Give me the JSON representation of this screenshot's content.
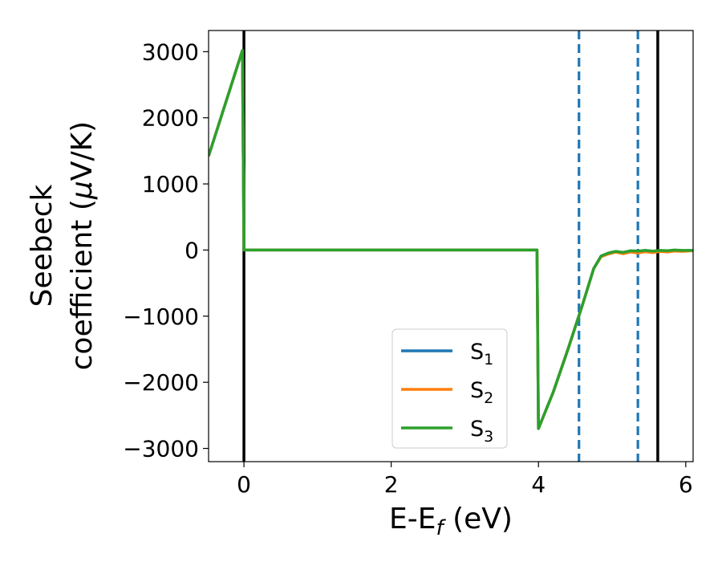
{
  "chart_data": {
    "type": "line",
    "xlabel": "E-E",
    "xlabel_sub": "f",
    "xlabel_unit": " (eV)",
    "ylabel_line1": "Seebeck",
    "ylabel_line2": "coefficient  (",
    "ylabel_mu": "μ",
    "ylabel_unit": "V/K)",
    "xlim": [
      -0.48,
      6.1
    ],
    "ylim": [
      -3200,
      3320
    ],
    "x_ticks": [
      0,
      2,
      4,
      6
    ],
    "x_tick_labels": [
      "0",
      "2",
      "4",
      "6"
    ],
    "y_ticks": [
      3000,
      2000,
      1000,
      0,
      -1000,
      -2000,
      -3000
    ],
    "y_tick_labels": [
      "3000",
      "2000",
      "1000",
      "0",
      "−1000",
      "−2000",
      "−3000"
    ],
    "grid": false,
    "legend_position": "lower-center",
    "vlines": [
      {
        "x": 0,
        "style": "solid",
        "color": "#000000"
      },
      {
        "x": 4.55,
        "style": "dashed",
        "color": "#1f77b4"
      },
      {
        "x": 5.35,
        "style": "dashed",
        "color": "#1f77b4"
      },
      {
        "x": 5.62,
        "style": "solid",
        "color": "#000000"
      }
    ],
    "series": [
      {
        "name": "S",
        "sub": "1",
        "color": "#1f77b4",
        "points": [
          [
            -0.48,
            1420
          ],
          [
            -0.02,
            3020
          ],
          [
            0.0,
            0
          ],
          [
            1.0,
            0
          ],
          [
            2.0,
            0
          ],
          [
            3.0,
            0
          ],
          [
            3.98,
            0
          ],
          [
            4.0,
            -2700
          ],
          [
            4.2,
            -2150
          ],
          [
            4.4,
            -1500
          ],
          [
            4.6,
            -820
          ],
          [
            4.75,
            -280
          ],
          [
            4.85,
            -90
          ],
          [
            4.95,
            -50
          ],
          [
            5.05,
            -25
          ],
          [
            5.15,
            -40
          ],
          [
            5.25,
            -15
          ],
          [
            5.35,
            -20
          ],
          [
            5.45,
            -5
          ],
          [
            5.55,
            -20
          ],
          [
            5.65,
            -10
          ],
          [
            5.75,
            -15
          ],
          [
            5.85,
            -5
          ],
          [
            5.95,
            -10
          ],
          [
            6.1,
            -5
          ]
        ]
      },
      {
        "name": "S",
        "sub": "2",
        "color": "#ff7f0e",
        "points": [
          [
            -0.48,
            1420
          ],
          [
            -0.02,
            3020
          ],
          [
            0.0,
            0
          ],
          [
            1.0,
            0
          ],
          [
            2.0,
            0
          ],
          [
            3.0,
            0
          ],
          [
            3.98,
            0
          ],
          [
            4.0,
            -2700
          ],
          [
            4.2,
            -2150
          ],
          [
            4.4,
            -1500
          ],
          [
            4.6,
            -820
          ],
          [
            4.75,
            -280
          ],
          [
            4.85,
            -100
          ],
          [
            4.95,
            -60
          ],
          [
            5.05,
            -30
          ],
          [
            5.15,
            -55
          ],
          [
            5.25,
            -30
          ],
          [
            5.35,
            -45
          ],
          [
            5.45,
            -25
          ],
          [
            5.55,
            -40
          ],
          [
            5.65,
            -20
          ],
          [
            5.75,
            -30
          ],
          [
            5.85,
            -15
          ],
          [
            5.95,
            -20
          ],
          [
            6.1,
            -10
          ]
        ]
      },
      {
        "name": "S",
        "sub": "3",
        "color": "#2ca02c",
        "points": [
          [
            -0.48,
            1420
          ],
          [
            -0.02,
            3020
          ],
          [
            0.0,
            0
          ],
          [
            1.0,
            0
          ],
          [
            2.0,
            0
          ],
          [
            3.0,
            0
          ],
          [
            3.98,
            0
          ],
          [
            4.0,
            -2700
          ],
          [
            4.2,
            -2150
          ],
          [
            4.4,
            -1500
          ],
          [
            4.6,
            -820
          ],
          [
            4.75,
            -280
          ],
          [
            4.85,
            -90
          ],
          [
            4.95,
            -45
          ],
          [
            5.05,
            -20
          ],
          [
            5.15,
            -35
          ],
          [
            5.25,
            -10
          ],
          [
            5.35,
            -15
          ],
          [
            5.45,
            -5
          ],
          [
            5.55,
            -15
          ],
          [
            5.65,
            -5
          ],
          [
            5.75,
            -10
          ],
          [
            5.85,
            0
          ],
          [
            5.95,
            -5
          ],
          [
            6.1,
            -5
          ]
        ]
      }
    ]
  }
}
